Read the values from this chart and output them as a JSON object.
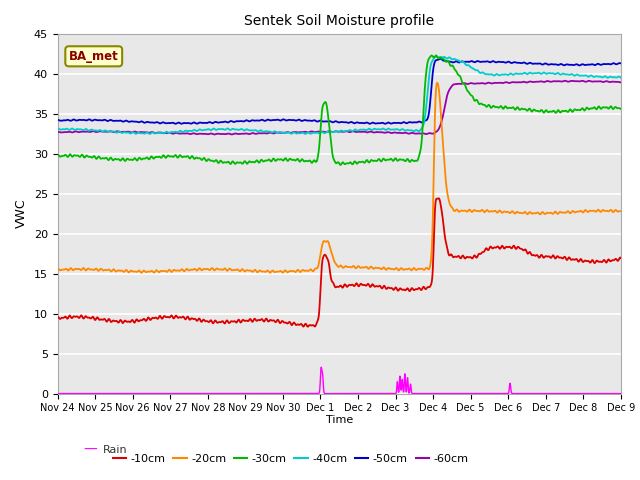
{
  "title": "Sentek Soil Moisture profile",
  "xlabel": "Time",
  "ylabel": "VWC",
  "annotation": "BA_met",
  "ylim": [
    0,
    45
  ],
  "xlim": [
    0,
    15
  ],
  "yticks": [
    0,
    5,
    10,
    15,
    20,
    25,
    30,
    35,
    40,
    45
  ],
  "xtick_labels": [
    "Nov 24",
    "Nov 25",
    "Nov 26",
    "Nov 27",
    "Nov 28",
    "Nov 29",
    "Nov 30",
    "Dec 1",
    "Dec 2",
    "Dec 3",
    "Dec 4",
    "Dec 5",
    "Dec 6",
    "Dec 7",
    "Dec 8",
    "Dec 9"
  ],
  "colors": {
    "-10cm": "#dd0000",
    "-20cm": "#ff8800",
    "-30cm": "#00bb00",
    "-40cm": "#00cccc",
    "-50cm": "#0000cc",
    "-60cm": "#9900aa",
    "Rain": "#ff00ff"
  },
  "background_color": "#e8e8e8",
  "grid_color": "#ffffff",
  "annotation_color": "#880000",
  "annotation_bg": "#ffffcc",
  "annotation_edge": "#888800"
}
